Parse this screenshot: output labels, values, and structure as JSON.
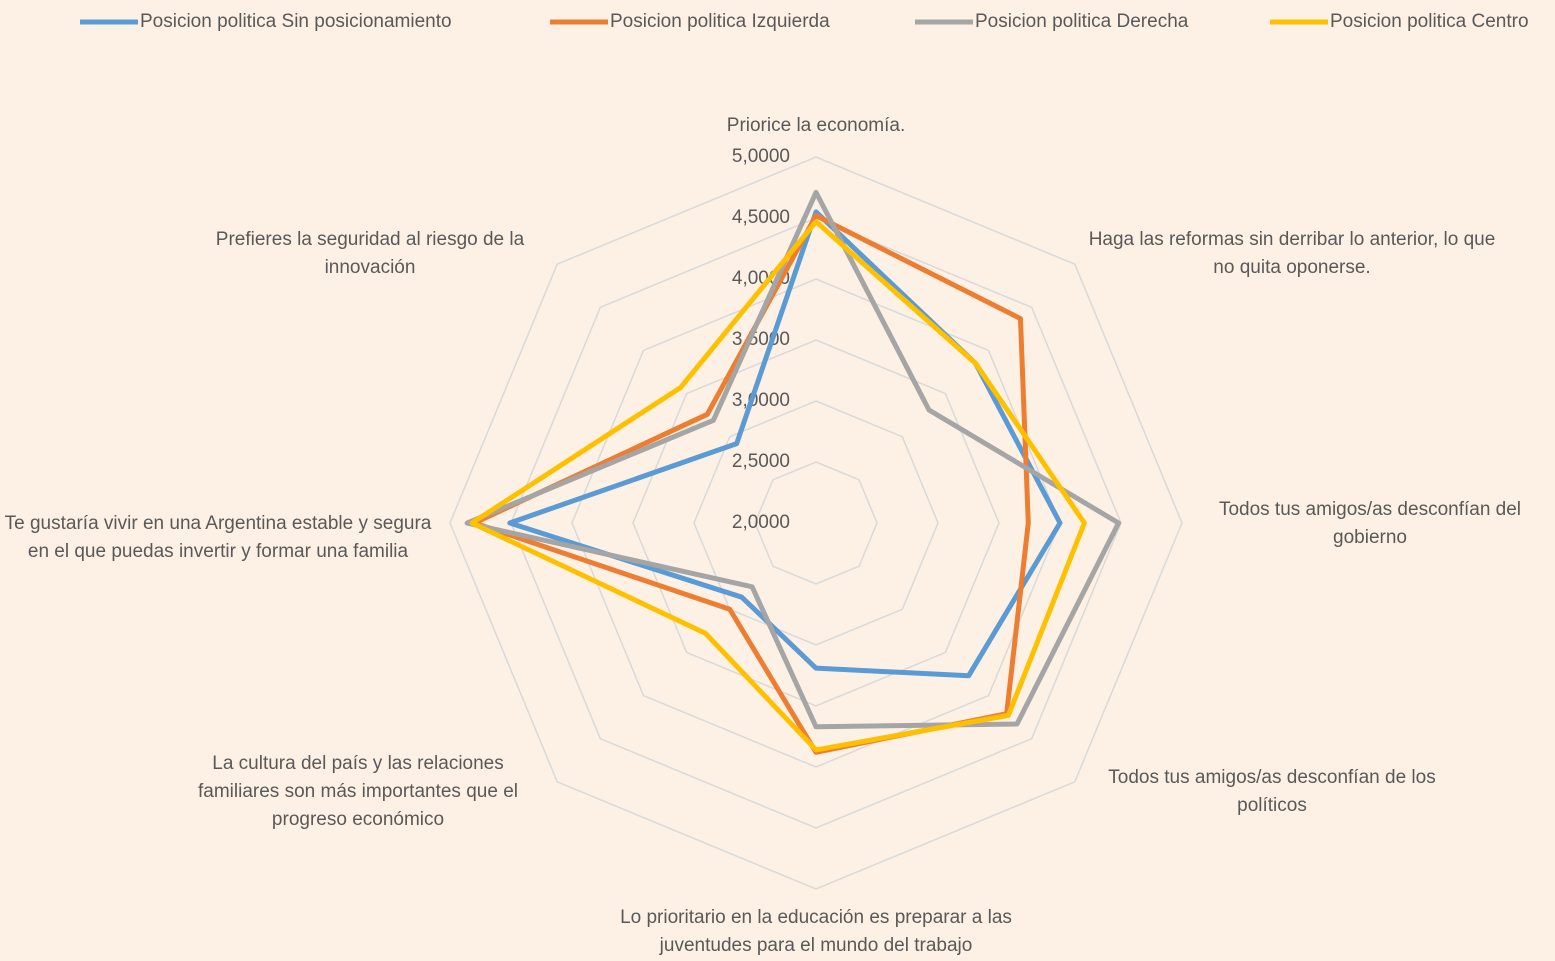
{
  "chart_data": {
    "type": "radar",
    "categories": [
      "Priorice la economía.",
      "Haga las reformas sin derribar lo anterior, lo que no quita oponerse.",
      "Todos tus amigos/as desconfían del gobierno",
      "Todos tus amigos/as desconfían de los políticos",
      "Lo prioritario en la educación es preparar a las juventudes para el mundo del trabajo",
      "La cultura del país y las relaciones familiares son más importantes que el progreso económico",
      "Te gustaría vivir en una Argentina estable y segura en el que puedas invertir y formar una familia",
      "Prefieres la seguridad al riesgo de la innovación"
    ],
    "series": [
      {
        "name": "Posicion politica Sin posicionamiento",
        "color": "#5b9bd5",
        "values": [
          4.55,
          3.85,
          4.0,
          3.77,
          3.19,
          2.86,
          4.51,
          2.92
        ]
      },
      {
        "name": "Posicion politica Izquierda",
        "color": "#ed7d31",
        "values": [
          4.52,
          4.37,
          3.74,
          4.21,
          3.88,
          3.0,
          4.8,
          3.26
        ]
      },
      {
        "name": "Posicion politica Derecha",
        "color": "#a5a5a5",
        "values": [
          4.71,
          3.31,
          4.48,
          4.33,
          3.67,
          2.74,
          4.86,
          3.19
        ]
      },
      {
        "name": "Posicion politica Centro",
        "color": "#ffc000",
        "values": [
          4.47,
          3.85,
          4.2,
          4.23,
          3.86,
          3.28,
          4.82,
          3.57
        ]
      }
    ],
    "ylim": [
      2,
      5
    ],
    "yticks": [
      {
        "value": 2,
        "label": "2,0000"
      },
      {
        "value": 2.5,
        "label": "2,5000"
      },
      {
        "value": 3,
        "label": "3,0000"
      },
      {
        "value": 3.5,
        "label": "3,5000"
      },
      {
        "value": 4,
        "label": "4,0000"
      },
      {
        "value": 4.5,
        "label": "4,5000"
      },
      {
        "value": 5,
        "label": "5,0000"
      }
    ],
    "grid": true,
    "legend": "top"
  }
}
